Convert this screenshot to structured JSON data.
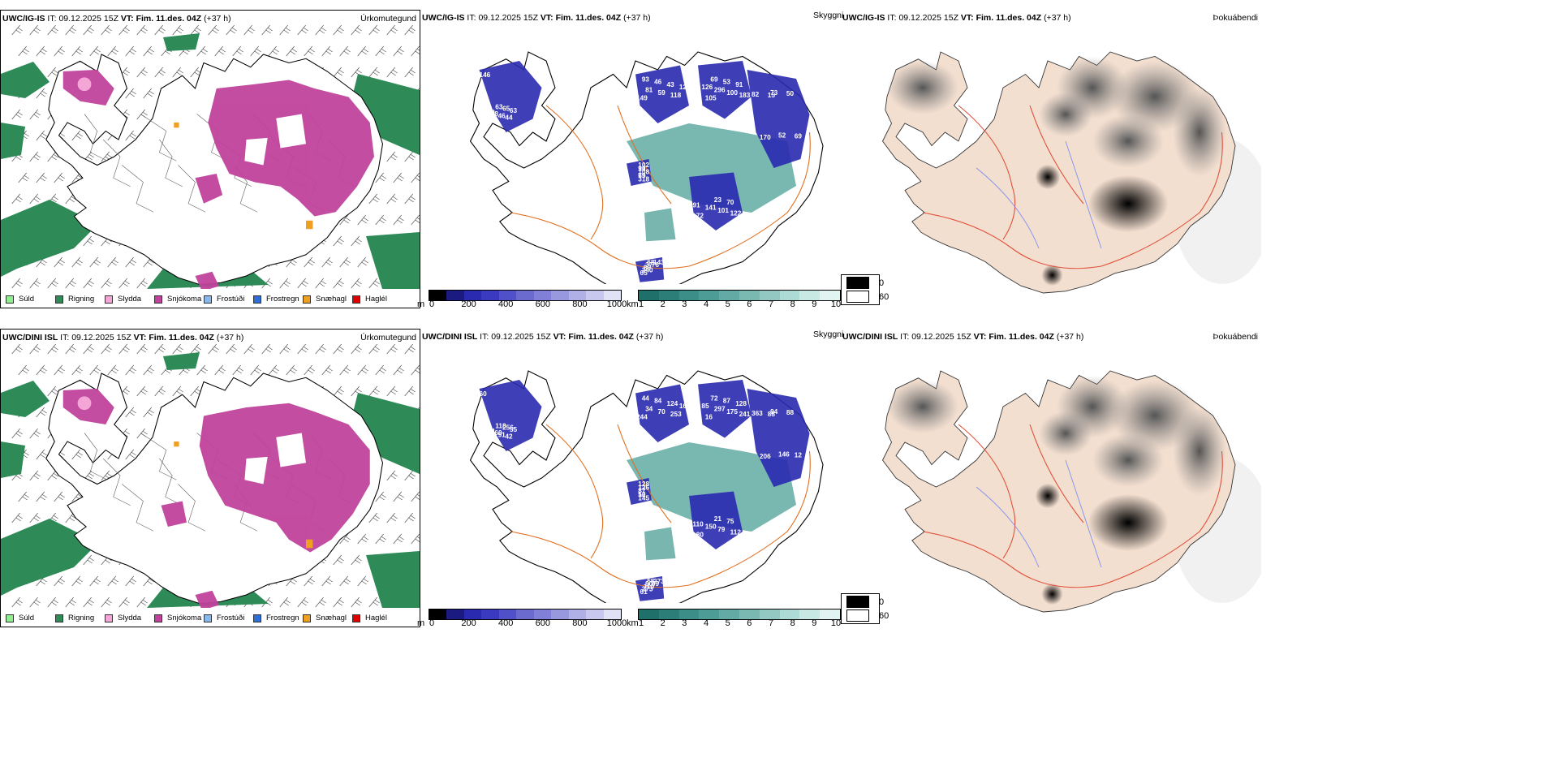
{
  "rows": [
    {
      "model": "UWC/IG-IS",
      "it_label": "IT:",
      "it_value": "09.12.2025 15Z",
      "vt_label": "VT:",
      "vt_value": "Fim. 11.des. 04Z",
      "lead": "(+37 h)",
      "precip_title": "Úrkomutegund",
      "cloud_title": "Skyggni",
      "fog_title": "Þokuábendi",
      "numbers": [
        "146",
        "93",
        "69",
        "73",
        "23",
        "10",
        "68",
        "44",
        "46",
        "53",
        "52",
        "70",
        "79",
        "37",
        "46",
        "43",
        "91",
        "50",
        "91",
        "102",
        "89",
        "98",
        "122",
        "126",
        "69",
        "141",
        "108",
        "240",
        "330",
        "81",
        "296",
        "82",
        "101",
        "318",
        "65",
        "63",
        "59",
        "100",
        "170",
        "122",
        "91",
        "143",
        "65",
        "118",
        "183",
        "15",
        "72",
        "65",
        "76",
        "63",
        "149",
        "105"
      ]
    },
    {
      "model": "UWC/DINI ISL",
      "it_label": "IT:",
      "it_value": "09.12.2025 15Z",
      "vt_label": "VT:",
      "vt_value": "Fim. 11.des. 04Z",
      "lead": "(+37 h)",
      "precip_title": "Úrkomutegund",
      "cloud_title": "Skyggni",
      "fog_title": "Þokuábendi",
      "numbers": [
        "60",
        "44",
        "72",
        "94",
        "21",
        "12",
        "55",
        "42",
        "84",
        "87",
        "146",
        "75",
        "12",
        "90",
        "91",
        "124",
        "128",
        "88",
        "110",
        "128",
        "110",
        "160",
        "166",
        "85",
        "12",
        "150",
        "87",
        "273",
        "214",
        "34",
        "297",
        "363",
        "79",
        "145",
        "61",
        "55",
        "70",
        "175",
        "206",
        "112",
        "126",
        "273",
        "256",
        "253",
        "241",
        "88",
        "80",
        "50",
        "59",
        "118",
        "244",
        "16"
      ]
    }
  ],
  "precip_legend": [
    {
      "label": "Súld",
      "color": "#90ee90"
    },
    {
      "label": "Rigning",
      "color": "#2e8b57"
    },
    {
      "label": "Slydda",
      "color": "#f4a6d7"
    },
    {
      "label": "Snjókoma",
      "color": "#c0439b"
    },
    {
      "label": "Frostúði",
      "color": "#87b8ee"
    },
    {
      "label": "Frostregn",
      "color": "#2d6fd6"
    },
    {
      "label": "Snæhagl",
      "color": "#f0a020"
    },
    {
      "label": "Haglél",
      "color": "#e00000"
    }
  ],
  "cloud_base_bar": {
    "unit": "m",
    "ticks": [
      "0",
      "200",
      "400",
      "600",
      "800",
      "1000"
    ],
    "colors": [
      "#000000",
      "#1a1a80",
      "#2a2ab0",
      "#3a3ac0",
      "#5050c8",
      "#6b6bcf",
      "#8080d8",
      "#9898df",
      "#b0b0e6",
      "#c8c8ef",
      "#e2e2f7"
    ]
  },
  "vis_bar": {
    "unit": "km",
    "ticks": [
      "1",
      "2",
      "3",
      "4",
      "5",
      "6",
      "7",
      "8",
      "9",
      "10"
    ],
    "colors": [
      "#1f6f6a",
      "#2c7f79",
      "#3b8f88",
      "#4d9c95",
      "#62aaa3",
      "#7ab8b2",
      "#93c7c1",
      "#addad4",
      "#c7e8e3",
      "#e2f4f1"
    ]
  },
  "fog_legend": [
    {
      "value": "0",
      "color": "#000000"
    },
    {
      "value": "60",
      "color": "#ffffff"
    }
  ]
}
